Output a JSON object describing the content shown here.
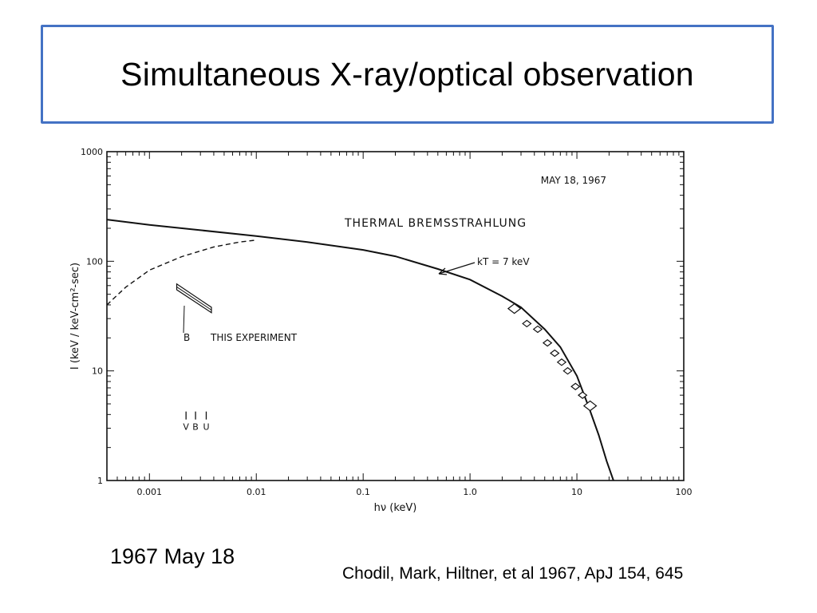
{
  "slide": {
    "title": "Simultaneous X-ray/optical observation",
    "date_caption": "1967 May 18",
    "reference": "Chodil, Mark, Hiltner, et al 1967, ApJ 154, 645"
  },
  "chart_data": {
    "type": "line",
    "x_scale": "log",
    "y_scale": "log",
    "xlim": [
      0.0004,
      100
    ],
    "ylim": [
      1,
      1000
    ],
    "xlabel": "hν (keV)",
    "ylabel": "I (keV / keV-cm²-sec)",
    "x_ticks": [
      {
        "value": 0.001,
        "label": "0.001"
      },
      {
        "value": 0.01,
        "label": "0.01"
      },
      {
        "value": 0.1,
        "label": "0.1"
      },
      {
        "value": 1,
        "label": "1.0"
      },
      {
        "value": 10,
        "label": "10"
      },
      {
        "value": 100,
        "label": "100"
      }
    ],
    "y_ticks": [
      {
        "value": 1,
        "label": "1"
      },
      {
        "value": 10,
        "label": "10"
      },
      {
        "value": 100,
        "label": "100"
      },
      {
        "value": 1000,
        "label": "1000"
      }
    ],
    "annotations": {
      "date": "MAY 18, 1967",
      "model": "THERMAL BREMSSTRAHLUNG",
      "kt_label": "kT = 7 keV",
      "experiment_marker": "B",
      "experiment_label": "THIS EXPERIMENT",
      "optical_bands": [
        "V",
        "B",
        "U"
      ]
    },
    "optical_band_energy_kev": [
      0.0022,
      0.0027,
      0.0034
    ],
    "series": [
      {
        "style": "solid",
        "points": [
          [
            0.0004,
            240
          ],
          [
            0.001,
            215
          ],
          [
            0.003,
            192
          ],
          [
            0.01,
            170
          ],
          [
            0.03,
            150
          ],
          [
            0.1,
            127
          ],
          [
            0.2,
            111
          ],
          [
            0.5,
            85
          ],
          [
            1,
            68
          ],
          [
            2,
            48
          ],
          [
            3,
            38
          ],
          [
            5,
            24
          ],
          [
            7,
            16.5
          ],
          [
            10,
            9
          ],
          [
            13,
            4.6
          ],
          [
            16,
            2.6
          ],
          [
            19,
            1.5
          ],
          [
            22,
            1
          ]
        ]
      },
      {
        "style": "dashed",
        "points": [
          [
            0.0004,
            40
          ],
          [
            0.0006,
            58
          ],
          [
            0.001,
            83
          ],
          [
            0.002,
            110
          ],
          [
            0.004,
            135
          ],
          [
            0.007,
            150
          ],
          [
            0.01,
            156
          ]
        ]
      }
    ],
    "xray_points": [
      {
        "x": 2.6,
        "y": 37
      },
      {
        "x": 3.4,
        "y": 27
      },
      {
        "x": 4.3,
        "y": 24
      },
      {
        "x": 5.3,
        "y": 18
      },
      {
        "x": 6.2,
        "y": 14.5
      },
      {
        "x": 7.2,
        "y": 12
      },
      {
        "x": 8.2,
        "y": 10
      },
      {
        "x": 9.7,
        "y": 7.2
      },
      {
        "x": 11.3,
        "y": 6.0
      },
      {
        "x": 13.3,
        "y": 4.8
      }
    ],
    "optical_band": {
      "x": [
        0.0018,
        0.0038
      ],
      "y_upper": [
        62,
        38
      ],
      "y_lower": [
        55,
        34
      ]
    }
  }
}
